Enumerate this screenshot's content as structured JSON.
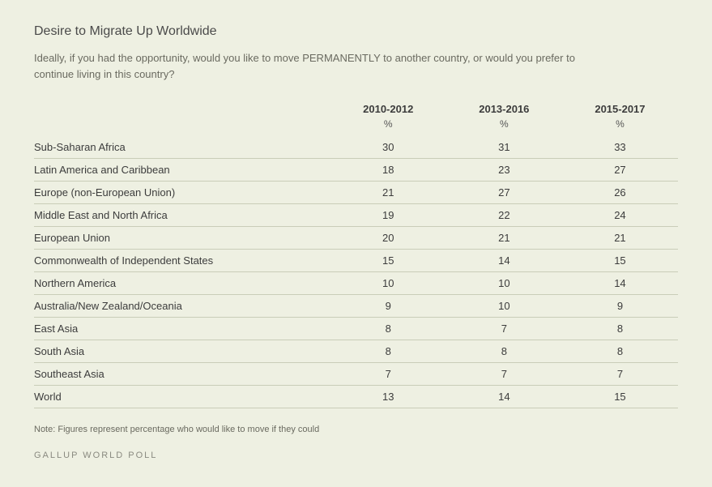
{
  "panel": {
    "background_color": "#eef0e2",
    "border_color": "#c9cdb8",
    "text_color": "#3a3a3a",
    "muted_color": "#6a6a60"
  },
  "title": "Desire to Migrate Up Worldwide",
  "subtitle": "Ideally, if you had the opportunity, would you like to move PERMANENTLY to another country, or would you prefer to continue living in this country?",
  "columns": [
    "2010-2012",
    "2013-2016",
    "2015-2017"
  ],
  "unit": "%",
  "rows": [
    {
      "label": "Sub-Saharan Africa",
      "v": [
        30,
        31,
        33
      ]
    },
    {
      "label": "Latin America and Caribbean",
      "v": [
        18,
        23,
        27
      ]
    },
    {
      "label": "Europe (non-European Union)",
      "v": [
        21,
        27,
        26
      ]
    },
    {
      "label": "Middle East and North Africa",
      "v": [
        19,
        22,
        24
      ]
    },
    {
      "label": "European Union",
      "v": [
        20,
        21,
        21
      ]
    },
    {
      "label": "Commonwealth of Independent States",
      "v": [
        15,
        14,
        15
      ]
    },
    {
      "label": "Northern America",
      "v": [
        10,
        10,
        14
      ]
    },
    {
      "label": "Australia/New Zealand/Oceania",
      "v": [
        9,
        10,
        9
      ]
    },
    {
      "label": "East Asia",
      "v": [
        8,
        7,
        8
      ]
    },
    {
      "label": "South Asia",
      "v": [
        8,
        8,
        8
      ]
    },
    {
      "label": "Southeast Asia",
      "v": [
        7,
        7,
        7
      ]
    },
    {
      "label": "World",
      "v": [
        13,
        14,
        15
      ]
    }
  ],
  "note": "Note: Figures represent percentage who would like to move if they could",
  "source": "GALLUP WORLD POLL"
}
